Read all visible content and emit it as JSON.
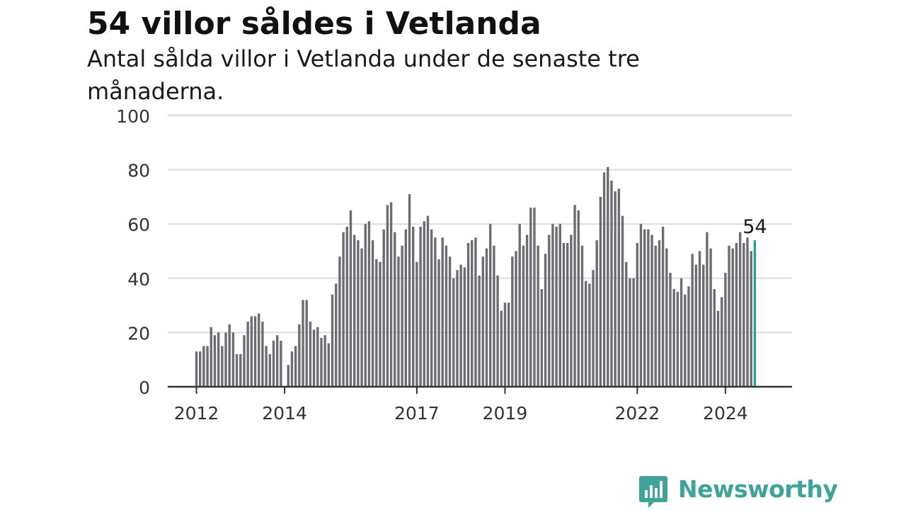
{
  "title": "54 villor såldes i Vetlanda",
  "subtitle": "Antal sålda villor i Vetlanda under de senaste tre månaderna.",
  "brand": {
    "name": "Newsworthy",
    "color": "#3fa39a",
    "icon": "newsworthy-chart-bubble-icon"
  },
  "colors": {
    "bar": "#6c6c72",
    "highlight": "#2a9d96",
    "grid": "#dddddd",
    "axis": "#333333"
  },
  "chart_data": {
    "type": "bar",
    "x_unit": "month",
    "x_start": "2012-01",
    "x_end": "2024-12",
    "ylim": [
      0,
      100
    ],
    "yticks": [
      0,
      20,
      40,
      60,
      80,
      100
    ],
    "xticks": [
      "2012",
      "2014",
      "2017",
      "2019",
      "2022",
      "2024"
    ],
    "grid": true,
    "legend": "none",
    "values": [
      13,
      13,
      15,
      15,
      22,
      19,
      20,
      15,
      20,
      23,
      20,
      12,
      12,
      19,
      24,
      26,
      26,
      27,
      24,
      15,
      12,
      17,
      19,
      17,
      null,
      8,
      13,
      15,
      23,
      32,
      32,
      24,
      21,
      22,
      18,
      19,
      16,
      34,
      38,
      48,
      57,
      59,
      65,
      56,
      54,
      51,
      60,
      61,
      54,
      47,
      46,
      58,
      67,
      68,
      57,
      48,
      52,
      58,
      71,
      59,
      46,
      59,
      61,
      63,
      58,
      55,
      47,
      55,
      52,
      48,
      40,
      43,
      45,
      44,
      53,
      54,
      55,
      41,
      48,
      51,
      60,
      52,
      41,
      28,
      31,
      31,
      48,
      50,
      60,
      52,
      56,
      66,
      66,
      52,
      36,
      49,
      56,
      60,
      59,
      60,
      53,
      53,
      56,
      67,
      65,
      52,
      39,
      38,
      43,
      54,
      70,
      79,
      81,
      76,
      72,
      73,
      63,
      46,
      40,
      40,
      53,
      60,
      58,
      58,
      56,
      52,
      54,
      59,
      51,
      42,
      36,
      35,
      40,
      34,
      37,
      49,
      45,
      50,
      45,
      57,
      51,
      36,
      28,
      33,
      42,
      52,
      51,
      53,
      57,
      53,
      55,
      50,
      54
    ],
    "highlight": {
      "value": 54,
      "label": "54"
    }
  }
}
